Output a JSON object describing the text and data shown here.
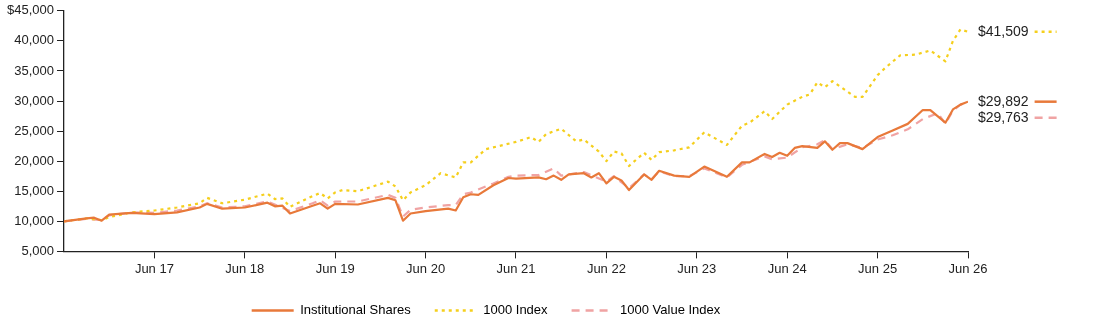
{
  "chart_data": {
    "type": "line",
    "legend": "bottom",
    "marker": "none",
    "xlim": [
      "2016-06",
      "2026-06"
    ],
    "xticks": [
      {
        "value": "2017-06",
        "label": "Jun 17"
      },
      {
        "value": "2018-06",
        "label": "Jun 18"
      },
      {
        "value": "2019-06",
        "label": "Jun 19"
      },
      {
        "value": "2020-06",
        "label": "Jun 20"
      },
      {
        "value": "2021-06",
        "label": "Jun 21"
      },
      {
        "value": "2022-06",
        "label": "Jun 22"
      },
      {
        "value": "2023-06",
        "label": "Jun 23"
      },
      {
        "value": "2024-06",
        "label": "Jun 24"
      },
      {
        "value": "2025-06",
        "label": "Jun 25"
      },
      {
        "value": "2026-06",
        "label": "Jun 26"
      }
    ],
    "ylim": [
      5000,
      45000
    ],
    "yticks": [
      {
        "value": 5000,
        "label": "5,000"
      },
      {
        "value": 10000,
        "label": "10,000"
      },
      {
        "value": 15000,
        "label": "15,000"
      },
      {
        "value": 20000,
        "label": "20,000"
      },
      {
        "value": 25000,
        "label": "25,000"
      },
      {
        "value": 30000,
        "label": "30,000"
      },
      {
        "value": 35000,
        "label": "35,000"
      },
      {
        "value": 40000,
        "label": "40,000"
      },
      {
        "value": 45000,
        "label": "$45,000"
      }
    ],
    "series": [
      {
        "name": "Institutional Shares",
        "color": "#e8793a",
        "line_style": "solid",
        "x": [
          "2016-06",
          "2016-09",
          "2016-10",
          "2016-11",
          "2016-12",
          "2017-03",
          "2017-06",
          "2017-09",
          "2017-12",
          "2018-01",
          "2018-03",
          "2018-06",
          "2018-09",
          "2018-10",
          "2018-11",
          "2018-12",
          "2019-03",
          "2019-04",
          "2019-05",
          "2019-06",
          "2019-09",
          "2020-01",
          "2020-02",
          "2020-03",
          "2020-04",
          "2020-06",
          "2020-09",
          "2020-10",
          "2020-11",
          "2020-12",
          "2021-01",
          "2021-03",
          "2021-05",
          "2021-06",
          "2021-09",
          "2021-10",
          "2021-11",
          "2021-12",
          "2022-01",
          "2022-03",
          "2022-04",
          "2022-05",
          "2022-06",
          "2022-07",
          "2022-08",
          "2022-09",
          "2022-11",
          "2022-12",
          "2023-01",
          "2023-03",
          "2023-05",
          "2023-07",
          "2023-10",
          "2023-12",
          "2024-01",
          "2024-03",
          "2024-04",
          "2024-05",
          "2024-06",
          "2024-07",
          "2024-08",
          "2024-10",
          "2024-11",
          "2024-12",
          "2025-01",
          "2025-02",
          "2025-04",
          "2025-06",
          "2025-08",
          "2025-10",
          "2025-12",
          "2026-01",
          "2026-03",
          "2026-04",
          "2026-05",
          "2026-06"
        ],
        "values": [
          10000,
          10500,
          10600,
          10100,
          11100,
          11400,
          11200,
          11500,
          12300,
          12900,
          12100,
          12300,
          13100,
          12500,
          12600,
          11300,
          12600,
          13000,
          12100,
          12900,
          12800,
          13900,
          13500,
          10100,
          11300,
          11700,
          12100,
          11800,
          14000,
          14500,
          14400,
          16000,
          17200,
          17100,
          17300,
          17000,
          17600,
          16900,
          17800,
          18000,
          17300,
          18000,
          16300,
          17400,
          16800,
          15200,
          17800,
          16900,
          18400,
          17600,
          17400,
          19100,
          17400,
          19800,
          19800,
          21200,
          20700,
          21400,
          20900,
          22200,
          22500,
          22200,
          23300,
          21900,
          23000,
          23000,
          22000,
          24000,
          25100,
          26200,
          28500,
          28500,
          26400,
          28600,
          29400,
          29892
        ]
      },
      {
        "name": "1000 Index",
        "color": "#f5cf1d",
        "line_style": "dotted",
        "x": [
          "2016-06",
          "2016-09",
          "2016-11",
          "2016-12",
          "2017-03",
          "2017-06",
          "2017-09",
          "2017-12",
          "2018-01",
          "2018-03",
          "2018-06",
          "2018-09",
          "2018-10",
          "2018-11",
          "2018-12",
          "2019-03",
          "2019-04",
          "2019-05",
          "2019-06",
          "2019-07",
          "2019-09",
          "2020-01",
          "2020-02",
          "2020-03",
          "2020-04",
          "2020-06",
          "2020-08",
          "2020-10",
          "2020-11",
          "2020-12",
          "2021-02",
          "2021-03",
          "2021-06",
          "2021-08",
          "2021-09",
          "2021-10",
          "2021-12",
          "2022-02",
          "2022-03",
          "2022-05",
          "2022-06",
          "2022-07",
          "2022-08",
          "2022-09",
          "2022-11",
          "2022-12",
          "2023-01",
          "2023-03",
          "2023-05",
          "2023-07",
          "2023-10",
          "2023-12",
          "2024-01",
          "2024-03",
          "2024-04",
          "2024-06",
          "2024-08",
          "2024-09",
          "2024-10",
          "2024-11",
          "2024-12",
          "2025-03",
          "2025-04",
          "2025-06",
          "2025-07",
          "2025-09",
          "2025-11",
          "2026-01",
          "2026-03",
          "2026-04",
          "2026-05",
          "2026-06"
        ],
        "values": [
          10000,
          10500,
          10200,
          10700,
          11500,
          11800,
          12300,
          13000,
          13900,
          13000,
          13600,
          14600,
          13700,
          13800,
          12400,
          14200,
          14700,
          13800,
          14800,
          15200,
          15000,
          16600,
          15800,
          13500,
          14800,
          16000,
          18000,
          17300,
          19800,
          19800,
          22000,
          22300,
          23200,
          24000,
          23200,
          24500,
          25400,
          23300,
          23600,
          21600,
          20000,
          21600,
          21300,
          19200,
          21400,
          20200,
          21500,
          21800,
          22300,
          24800,
          22700,
          25900,
          26400,
          28300,
          27000,
          29400,
          30700,
          31100,
          33100,
          32300,
          33300,
          30700,
          30700,
          34300,
          35500,
          37600,
          37700,
          38400,
          36600,
          40000,
          41900,
          41509
        ]
      },
      {
        "name": "1000 Value Index",
        "color": "#f0a3a3",
        "line_style": "dashed",
        "x": [
          "2016-06",
          "2016-09",
          "2016-11",
          "2016-12",
          "2017-03",
          "2017-06",
          "2017-09",
          "2017-12",
          "2018-01",
          "2018-03",
          "2018-06",
          "2018-09",
          "2018-12",
          "2019-03",
          "2019-04",
          "2019-05",
          "2019-06",
          "2019-09",
          "2020-01",
          "2020-02",
          "2020-03",
          "2020-04",
          "2020-06",
          "2020-09",
          "2020-10",
          "2020-11",
          "2020-12",
          "2021-03",
          "2021-05",
          "2021-06",
          "2021-09",
          "2021-11",
          "2021-12",
          "2022-03",
          "2022-06",
          "2022-07",
          "2022-09",
          "2022-11",
          "2022-12",
          "2023-01",
          "2023-03",
          "2023-05",
          "2023-07",
          "2023-10",
          "2023-12",
          "2024-03",
          "2024-04",
          "2024-06",
          "2024-08",
          "2024-10",
          "2024-11",
          "2024-12",
          "2025-02",
          "2025-04",
          "2025-06",
          "2025-08",
          "2025-10",
          "2025-12",
          "2026-02",
          "2026-03",
          "2026-04",
          "2026-05",
          "2026-06"
        ],
        "values": [
          10000,
          10400,
          10200,
          11000,
          11500,
          11400,
          11800,
          12500,
          13000,
          12300,
          12500,
          13300,
          11700,
          13000,
          13500,
          12600,
          13300,
          13300,
          14400,
          13900,
          10800,
          11900,
          12300,
          12700,
          12700,
          14500,
          14800,
          16300,
          17400,
          17600,
          17700,
          18800,
          17600,
          18200,
          16600,
          17500,
          15500,
          17800,
          17000,
          18300,
          17500,
          17500,
          18800,
          17300,
          19400,
          20800,
          20300,
          20600,
          22300,
          22800,
          23500,
          22000,
          22800,
          22200,
          23600,
          24300,
          25300,
          27000,
          28000,
          26200,
          28400,
          29400,
          29763
        ]
      }
    ],
    "annotations": [
      {
        "text": "$29,892",
        "x": "2026-06",
        "y": 29892
      },
      {
        "text": "$41,509",
        "x": "2026-06",
        "y": 41509
      },
      {
        "text": "$29,763",
        "x": "2026-06",
        "y": 29763
      }
    ]
  }
}
